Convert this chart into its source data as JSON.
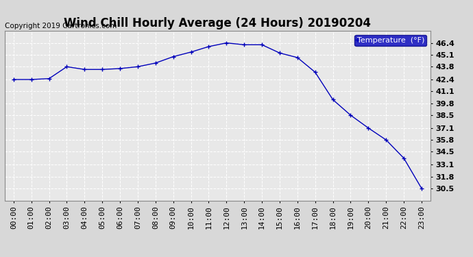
{
  "title": "Wind Chill Hourly Average (24 Hours) 20190204",
  "copyright": "Copyright 2019 Cartronics.com",
  "legend_label": "Temperature  (°F)",
  "hours": [
    "00:00",
    "01:00",
    "02:00",
    "03:00",
    "04:00",
    "05:00",
    "06:00",
    "07:00",
    "08:00",
    "09:00",
    "10:00",
    "11:00",
    "12:00",
    "13:00",
    "14:00",
    "15:00",
    "16:00",
    "17:00",
    "18:00",
    "19:00",
    "20:00",
    "21:00",
    "22:00",
    "23:00"
  ],
  "values": [
    42.4,
    42.4,
    42.5,
    43.8,
    43.5,
    43.5,
    43.6,
    43.8,
    44.2,
    44.9,
    45.4,
    46.0,
    46.4,
    46.2,
    46.2,
    45.3,
    44.8,
    43.2,
    40.2,
    38.5,
    37.1,
    35.8,
    33.8,
    30.5
  ],
  "line_color": "#0000bb",
  "marker": "+",
  "marker_size": 5,
  "marker_color": "#0000bb",
  "bg_color": "#d8d8d8",
  "plot_bg_color": "#e8e8e8",
  "grid_color": "#ffffff",
  "ylim_min": 29.18,
  "ylim_max": 47.72,
  "yticks": [
    30.5,
    31.8,
    33.1,
    34.5,
    35.8,
    37.1,
    38.5,
    39.8,
    41.1,
    42.4,
    43.8,
    45.1,
    46.4
  ],
  "legend_bg": "#0000bb",
  "legend_text_color": "#ffffff",
  "title_fontsize": 12,
  "tick_fontsize": 8,
  "copyright_fontsize": 7.5,
  "linewidth": 1.0
}
